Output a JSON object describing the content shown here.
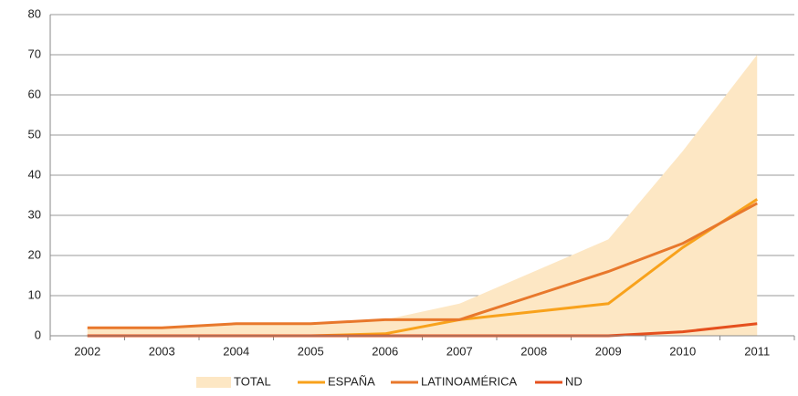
{
  "chart_data": {
    "type": "line",
    "categories": [
      "2002",
      "2003",
      "2004",
      "2005",
      "2006",
      "2007",
      "2008",
      "2009",
      "2010",
      "2011"
    ],
    "series": [
      {
        "name": "TOTAL",
        "color": "#fde7c4",
        "area": true,
        "values": [
          2,
          2,
          3,
          3,
          4,
          8,
          16,
          24,
          46,
          70
        ]
      },
      {
        "name": "ESPAÑA",
        "color": "#f8a21c",
        "values": [
          0,
          0,
          0,
          0,
          0.5,
          4,
          6,
          8,
          22,
          34
        ]
      },
      {
        "name": "LATINOAMÉRICA",
        "color": "#e8782c",
        "values": [
          2,
          2,
          3,
          3,
          4,
          4,
          10,
          16,
          23,
          33
        ]
      },
      {
        "name": "ND",
        "color": "#e5501e",
        "values": [
          0,
          0,
          0,
          0,
          0,
          0,
          0,
          0,
          1,
          3
        ]
      }
    ],
    "ylim": [
      0,
      80
    ],
    "yticks": [
      0,
      10,
      20,
      30,
      40,
      50,
      60,
      70,
      80
    ],
    "grid": true
  }
}
